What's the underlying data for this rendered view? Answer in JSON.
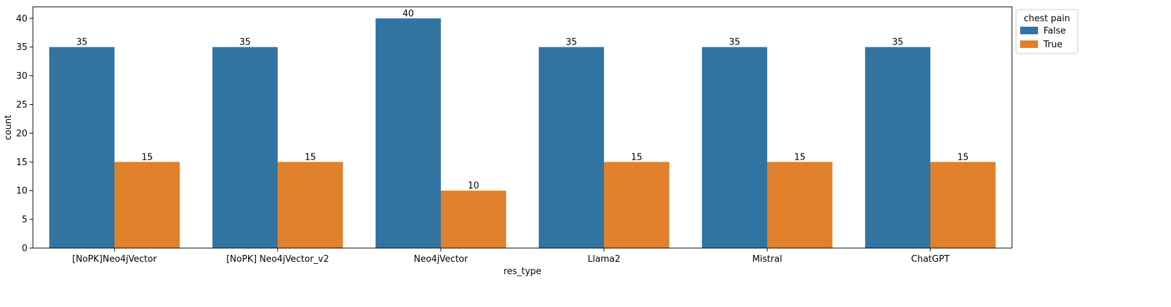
{
  "chart_data": {
    "type": "bar",
    "title": "",
    "xlabel": "res_type",
    "ylabel": "count",
    "ylim": [
      0,
      42
    ],
    "yticks": [
      0,
      5,
      10,
      15,
      20,
      25,
      30,
      35,
      40
    ],
    "categories": [
      "[NoPK]Neo4jVector",
      "[NoPK] Neo4jVector_v2",
      "Neo4jVector",
      "Llama2",
      "Mistral",
      "ChatGPT"
    ],
    "series": [
      {
        "name": "False",
        "color": "#3274a1",
        "values": [
          35,
          35,
          40,
          35,
          35,
          35
        ]
      },
      {
        "name": "True",
        "color": "#e1812c",
        "values": [
          15,
          15,
          10,
          15,
          15,
          15
        ]
      }
    ],
    "legend": {
      "title": "chest pain",
      "position": "outside-top-right"
    },
    "grid": false
  }
}
